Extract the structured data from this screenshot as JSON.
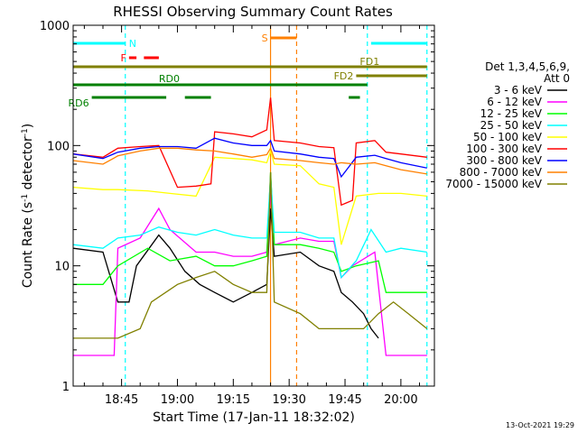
{
  "chart_data": {
    "type": "line",
    "title": "RHESSI Observing Summary Count Rates",
    "xlabel": "Start Time (17-Jan-11 18:32:02)",
    "ylabel_main": "Count Rate (s",
    "ylabel_exp": "-1",
    "ylabel_tail": " detector",
    "ylabel_close": ")",
    "ylog": true,
    "ylim": [
      1,
      1000
    ],
    "xlim": [
      "18:32",
      "20:09"
    ],
    "x_ticks": [
      {
        "t": "18:45",
        "label": "18:45"
      },
      {
        "t": "19:00",
        "label": "19:00"
      },
      {
        "t": "19:15",
        "label": "19:15"
      },
      {
        "t": "19:30",
        "label": "19:30"
      },
      {
        "t": "19:45",
        "label": "19:45"
      },
      {
        "t": "20:00",
        "label": "20:00"
      }
    ],
    "y_ticks": [
      {
        "v": 1,
        "label": "1"
      },
      {
        "v": 10,
        "label": "10"
      },
      {
        "v": 100,
        "label": "100"
      },
      {
        "v": 1000,
        "label": "1000"
      }
    ],
    "legend_header": [
      "Det 1,3,4,5,6,9,",
      "Att 0"
    ],
    "series": [
      {
        "name": "3 - 6 keV",
        "color": "#000000",
        "points": [
          [
            "18:32",
            14
          ],
          [
            "18:40",
            13
          ],
          [
            "18:44",
            5
          ],
          [
            "18:47",
            5
          ],
          [
            "18:49",
            10
          ],
          [
            "18:55",
            18
          ],
          [
            "18:58",
            14
          ],
          [
            "19:02",
            9
          ],
          [
            "19:06",
            7
          ],
          [
            "19:10",
            6
          ],
          [
            "19:15",
            5
          ],
          [
            "19:20",
            6
          ],
          [
            "19:24",
            7
          ],
          [
            "19:25",
            30
          ],
          [
            "19:26",
            12
          ],
          [
            "19:33",
            13
          ],
          [
            "19:38",
            10
          ],
          [
            "19:42",
            9
          ],
          [
            "19:44",
            6
          ],
          [
            "19:47",
            5
          ],
          [
            "19:50",
            4
          ],
          [
            "19:52",
            3
          ],
          [
            "19:54",
            2.5
          ]
        ]
      },
      {
        "name": "6 - 12 keV",
        "color": "#ff00ff",
        "points": [
          [
            "18:32",
            1.8
          ],
          [
            "18:43",
            1.8
          ],
          [
            "18:44",
            14
          ],
          [
            "18:50",
            17
          ],
          [
            "18:55",
            30
          ],
          [
            "18:58",
            20
          ],
          [
            "19:05",
            13
          ],
          [
            "19:10",
            13
          ],
          [
            "19:15",
            12
          ],
          [
            "19:20",
            12
          ],
          [
            "19:24",
            13
          ],
          [
            "19:25",
            40
          ],
          [
            "19:26",
            15
          ],
          [
            "19:33",
            17
          ],
          [
            "19:38",
            16
          ],
          [
            "19:42",
            16
          ],
          [
            "19:44",
            8
          ],
          [
            "19:47",
            10
          ],
          [
            "19:53",
            13
          ],
          [
            "19:56",
            1.8
          ],
          [
            "20:07",
            1.8
          ]
        ]
      },
      {
        "name": "12 - 25 keV",
        "color": "#00ff00",
        "points": [
          [
            "18:32",
            7
          ],
          [
            "18:40",
            7
          ],
          [
            "18:44",
            10
          ],
          [
            "18:52",
            14
          ],
          [
            "18:58",
            11
          ],
          [
            "19:05",
            12
          ],
          [
            "19:10",
            10
          ],
          [
            "19:15",
            10
          ],
          [
            "19:20",
            11
          ],
          [
            "19:24",
            12
          ],
          [
            "19:25",
            60
          ],
          [
            "19:26",
            15
          ],
          [
            "19:33",
            15
          ],
          [
            "19:38",
            14
          ],
          [
            "19:42",
            13
          ],
          [
            "19:44",
            9
          ],
          [
            "19:48",
            10
          ],
          [
            "19:54",
            11
          ],
          [
            "19:56",
            6
          ],
          [
            "20:00",
            6
          ],
          [
            "20:07",
            6
          ]
        ]
      },
      {
        "name": "25 - 50 keV",
        "color": "#00ffff",
        "points": [
          [
            "18:32",
            15
          ],
          [
            "18:40",
            14
          ],
          [
            "18:44",
            17
          ],
          [
            "18:50",
            18
          ],
          [
            "18:55",
            21
          ],
          [
            "19:00",
            19
          ],
          [
            "19:05",
            18
          ],
          [
            "19:10",
            20
          ],
          [
            "19:15",
            18
          ],
          [
            "19:20",
            17
          ],
          [
            "19:24",
            17
          ],
          [
            "19:25",
            55
          ],
          [
            "19:26",
            19
          ],
          [
            "19:33",
            19
          ],
          [
            "19:38",
            17
          ],
          [
            "19:42",
            17
          ],
          [
            "19:44",
            8
          ],
          [
            "19:48",
            11
          ],
          [
            "19:52",
            20
          ],
          [
            "19:56",
            13
          ],
          [
            "20:00",
            14
          ],
          [
            "20:07",
            13
          ]
        ]
      },
      {
        "name": "50 - 100 keV",
        "color": "#ffff00",
        "points": [
          [
            "18:32",
            45
          ],
          [
            "18:40",
            43
          ],
          [
            "18:44",
            43
          ],
          [
            "18:52",
            42
          ],
          [
            "18:58",
            40
          ],
          [
            "19:05",
            38
          ],
          [
            "19:10",
            80
          ],
          [
            "19:15",
            78
          ],
          [
            "19:20",
            76
          ],
          [
            "19:24",
            72
          ],
          [
            "19:25",
            90
          ],
          [
            "19:26",
            70
          ],
          [
            "19:33",
            68
          ],
          [
            "19:38",
            48
          ],
          [
            "19:42",
            45
          ],
          [
            "19:44",
            15
          ],
          [
            "19:48",
            38
          ],
          [
            "19:54",
            40
          ],
          [
            "20:00",
            40
          ],
          [
            "20:07",
            38
          ]
        ]
      },
      {
        "name": "100 - 300 keV",
        "color": "#ff0000",
        "points": [
          [
            "18:32",
            85
          ],
          [
            "18:40",
            80
          ],
          [
            "18:44",
            95
          ],
          [
            "18:50",
            98
          ],
          [
            "18:55",
            100
          ],
          [
            "19:00",
            45
          ],
          [
            "19:05",
            46
          ],
          [
            "19:09",
            48
          ],
          [
            "19:10",
            130
          ],
          [
            "19:15",
            125
          ],
          [
            "19:20",
            118
          ],
          [
            "19:24",
            135
          ],
          [
            "19:25",
            250
          ],
          [
            "19:26",
            110
          ],
          [
            "19:33",
            105
          ],
          [
            "19:38",
            98
          ],
          [
            "19:42",
            96
          ],
          [
            "19:44",
            32
          ],
          [
            "19:47",
            35
          ],
          [
            "19:48",
            105
          ],
          [
            "19:53",
            110
          ],
          [
            "19:56",
            88
          ],
          [
            "20:00",
            85
          ],
          [
            "20:07",
            80
          ]
        ]
      },
      {
        "name": "300 - 800 keV",
        "color": "#0000ff",
        "points": [
          [
            "18:32",
            85
          ],
          [
            "18:40",
            78
          ],
          [
            "18:44",
            88
          ],
          [
            "18:50",
            95
          ],
          [
            "18:55",
            98
          ],
          [
            "19:00",
            98
          ],
          [
            "19:05",
            95
          ],
          [
            "19:10",
            115
          ],
          [
            "19:15",
            105
          ],
          [
            "19:20",
            100
          ],
          [
            "19:24",
            100
          ],
          [
            "19:25",
            110
          ],
          [
            "19:26",
            90
          ],
          [
            "19:33",
            85
          ],
          [
            "19:38",
            80
          ],
          [
            "19:42",
            78
          ],
          [
            "19:44",
            55
          ],
          [
            "19:48",
            80
          ],
          [
            "19:53",
            83
          ],
          [
            "19:56",
            78
          ],
          [
            "20:00",
            72
          ],
          [
            "20:07",
            65
          ]
        ]
      },
      {
        "name": "800 - 7000 keV",
        "color": "#ff8000",
        "points": [
          [
            "18:32",
            75
          ],
          [
            "18:40",
            70
          ],
          [
            "18:44",
            82
          ],
          [
            "18:50",
            90
          ],
          [
            "18:55",
            95
          ],
          [
            "19:00",
            95
          ],
          [
            "19:05",
            92
          ],
          [
            "19:10",
            90
          ],
          [
            "19:15",
            85
          ],
          [
            "19:20",
            80
          ],
          [
            "19:24",
            84
          ],
          [
            "19:25",
            95
          ],
          [
            "19:26",
            78
          ],
          [
            "19:33",
            75
          ],
          [
            "19:38",
            72
          ],
          [
            "19:42",
            70
          ],
          [
            "19:44",
            72
          ],
          [
            "19:48",
            70
          ],
          [
            "19:53",
            72
          ],
          [
            "19:56",
            68
          ],
          [
            "20:00",
            63
          ],
          [
            "20:07",
            58
          ]
        ]
      },
      {
        "name": "7000 - 15000 keV",
        "color": "#808000",
        "points": [
          [
            "18:32",
            2.5
          ],
          [
            "18:40",
            2.5
          ],
          [
            "18:44",
            2.5
          ],
          [
            "18:50",
            3
          ],
          [
            "18:53",
            5
          ],
          [
            "19:00",
            7
          ],
          [
            "19:05",
            8
          ],
          [
            "19:10",
            9
          ],
          [
            "19:15",
            7
          ],
          [
            "19:20",
            6
          ],
          [
            "19:24",
            6
          ],
          [
            "19:25",
            60
          ],
          [
            "19:26",
            5
          ],
          [
            "19:33",
            4
          ],
          [
            "19:38",
            3
          ],
          [
            "19:42",
            3
          ],
          [
            "19:44",
            3
          ],
          [
            "19:50",
            3
          ],
          [
            "19:54",
            4
          ],
          [
            "19:58",
            5
          ],
          [
            "20:02",
            4
          ],
          [
            "20:07",
            3
          ]
        ]
      }
    ],
    "flag_bars": [
      {
        "label": "N",
        "color": "#00ffff",
        "y_frac": 0.05,
        "segments": [
          [
            "18:32",
            "18:46"
          ],
          [
            "19:52",
            "20:07"
          ]
        ]
      },
      {
        "label": "F",
        "color": "#ff0000",
        "y_frac": 0.09,
        "segments": [
          [
            "18:47",
            "18:49"
          ],
          [
            "18:51",
            "18:55"
          ]
        ]
      },
      {
        "label": "S",
        "color": "#ff8000",
        "y_frac": 0.035,
        "segments": [
          [
            "19:25",
            "19:32"
          ]
        ]
      },
      {
        "label": "FD1",
        "color": "#808000",
        "y_frac": 0.115,
        "segments": [
          [
            "18:32",
            "20:07"
          ]
        ]
      },
      {
        "label": "FD2",
        "color": "#808000",
        "y_frac": 0.14,
        "segments": [
          [
            "19:48",
            "20:07"
          ]
        ]
      },
      {
        "label": "RD0",
        "color": "#008000",
        "y_frac": 0.165,
        "segments": [
          [
            "18:32",
            "19:51"
          ]
        ]
      },
      {
        "label": "RD6",
        "color": "#008000",
        "y_frac": 0.2,
        "segments": [
          [
            "18:37",
            "18:57"
          ],
          [
            "19:02",
            "19:09"
          ],
          [
            "19:46",
            "19:49"
          ]
        ]
      }
    ],
    "vlines": [
      {
        "t": "18:46",
        "color": "#00ffff",
        "dash": true
      },
      {
        "t": "19:25",
        "color": "#ff8000",
        "dash": false
      },
      {
        "t": "19:32",
        "color": "#ff8000",
        "dash": true
      },
      {
        "t": "19:51",
        "color": "#00ffff",
        "dash": true
      },
      {
        "t": "20:07",
        "color": "#00ffff",
        "dash": true
      }
    ]
  },
  "footer": {
    "timestamp": "13-Oct-2021 19:29"
  }
}
